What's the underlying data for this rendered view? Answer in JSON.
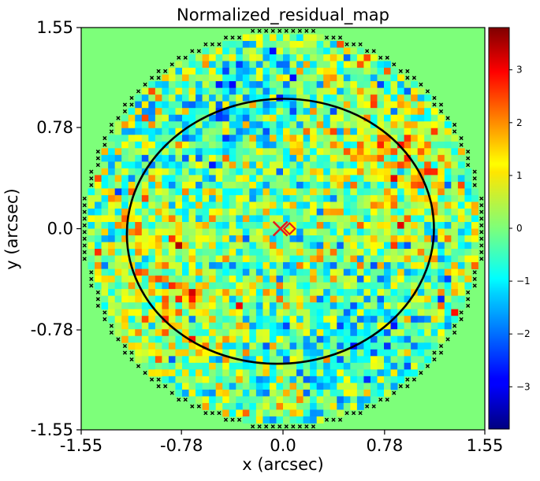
{
  "chart_data": {
    "type": "heatmap",
    "title": "Normalized_residual_map",
    "xlabel": "x (arcsec)",
    "ylabel": "y (arcsec)",
    "xlim": [
      -1.55,
      1.55
    ],
    "ylim": [
      -1.55,
      1.55
    ],
    "x_ticks": [
      "-1.55",
      "-0.78",
      "0.0",
      "0.78",
      "1.55"
    ],
    "y_ticks": [
      "1.55",
      "0.78",
      "0.0",
      "-0.78",
      "-1.55"
    ],
    "x_tick_values": [
      -1.55,
      -0.78,
      0.0,
      0.78,
      1.55
    ],
    "y_tick_values": [
      1.55,
      0.78,
      0.0,
      -0.78,
      -1.55
    ],
    "colormap": "jet",
    "background_value": 0,
    "mask_radius_arcsec": 1.5,
    "grid_size": 60,
    "colorbar": {
      "range": [
        -3.8,
        3.8
      ],
      "ticks": [
        3,
        2,
        1,
        0,
        -1,
        -2,
        -3
      ],
      "tick_labels": [
        "3",
        "2",
        "1",
        "0",
        "−1",
        "−2",
        "−3"
      ]
    },
    "critical_curve": {
      "center": [
        -0.02,
        -0.02
      ],
      "semi_axis_x": 1.18,
      "semi_axis_y": 1.02,
      "rotation_deg": -4,
      "color": "#000000"
    },
    "markers": [
      {
        "name": "x",
        "x": -0.02,
        "y": 0.0,
        "color": "#e41a1c"
      },
      {
        "name": "diamond",
        "x": 0.05,
        "y": 0.0,
        "color": "#e41a1c"
      }
    ],
    "masked_pixel_marker": {
      "name": "x",
      "color": "#000000"
    }
  }
}
